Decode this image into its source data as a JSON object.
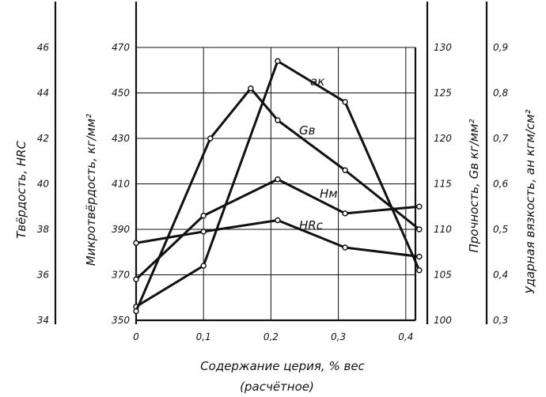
{
  "chart_data": {
    "type": "line",
    "xlabel": "Содержание церия, % вес",
    "xlabel2": "(расчётное)",
    "x_ticks": [
      "0",
      "0,1",
      "0,2",
      "0,3",
      "0,4"
    ],
    "xlim": [
      0,
      0.43
    ],
    "axes": [
      {
        "id": "hrc",
        "label": "Твёрдость, HRC",
        "ticks": [
          "34",
          "36",
          "38",
          "40",
          "42",
          "44",
          "46"
        ],
        "tick_values": [
          34,
          36,
          38,
          40,
          42,
          44,
          46
        ],
        "ylim": [
          34,
          46
        ]
      },
      {
        "id": "micro",
        "label": "Микротвёрдость, кг/мм²",
        "ticks": [
          "350",
          "370",
          "390",
          "410",
          "430",
          "450",
          "470"
        ],
        "tick_values": [
          350,
          370,
          390,
          410,
          430,
          450,
          470
        ],
        "ylim": [
          350,
          470
        ]
      },
      {
        "id": "strength",
        "label": "Прочность, Gв кг/мм²",
        "ticks": [
          "100",
          "105",
          "110",
          "115",
          "120",
          "125",
          "130"
        ],
        "tick_values": [
          100,
          105,
          110,
          115,
          120,
          125,
          130
        ],
        "ylim": [
          100,
          130
        ]
      },
      {
        "id": "impact",
        "label": "Ударная вязкость, aн кгм/см²",
        "ticks": [
          "0,3",
          "0,4",
          "0,5",
          "0,6",
          "0,7",
          "0,8",
          "0,9"
        ],
        "tick_values": [
          0.3,
          0.4,
          0.5,
          0.6,
          0.7,
          0.8,
          0.9
        ],
        "ylim": [
          0.3,
          0.9
        ]
      }
    ],
    "series": [
      {
        "name": "aк",
        "axis": "impact",
        "x": [
          0,
          0.1,
          0.21,
          0.31,
          0.42
        ],
        "y": [
          0.33,
          0.42,
          0.87,
          0.78,
          0.41
        ]
      },
      {
        "name": "Gв",
        "axis": "strength",
        "x": [
          0,
          0.11,
          0.17,
          0.21,
          0.31,
          0.42
        ],
        "y": [
          101,
          120,
          125.5,
          122,
          116.5,
          110
        ]
      },
      {
        "name": "Hм",
        "axis": "micro",
        "x": [
          0,
          0.1,
          0.21,
          0.31,
          0.42
        ],
        "y": [
          368,
          396,
          412,
          397,
          400
        ]
      },
      {
        "name": "HRc",
        "axis": "hrc",
        "x": [
          0,
          0.1,
          0.21,
          0.31,
          0.42
        ],
        "y": [
          37.4,
          37.9,
          38.4,
          37.2,
          36.8
        ]
      }
    ]
  }
}
